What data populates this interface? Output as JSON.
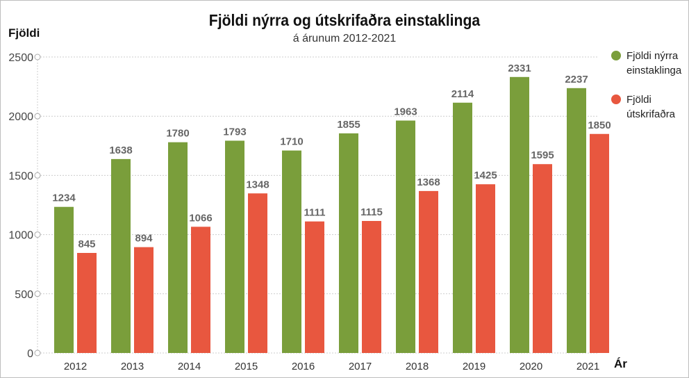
{
  "chart_data": {
    "type": "bar",
    "title": "Fjöldi nýrra og útskrifaðra einstaklinga",
    "subtitle": "á árunum 2012-2021",
    "ylabel": "Fjöldi",
    "xlabel": "Ár",
    "ylim": [
      0,
      2500
    ],
    "yticks": [
      0,
      500,
      1000,
      1500,
      2000,
      2500
    ],
    "grid": true,
    "legend_position": "right",
    "categories": [
      "2012",
      "2013",
      "2014",
      "2015",
      "2016",
      "2017",
      "2018",
      "2019",
      "2020",
      "2021"
    ],
    "series": [
      {
        "name": "Fjöldi nýrra einstaklinga",
        "color": "#7a9e3b",
        "values": [
          1234,
          1638,
          1780,
          1793,
          1710,
          1855,
          1963,
          2114,
          2331,
          2237
        ]
      },
      {
        "name": "Fjöldi útskrifaðra",
        "color": "#e8573f",
        "values": [
          845,
          894,
          1066,
          1348,
          1111,
          1115,
          1368,
          1425,
          1595,
          1850
        ]
      }
    ]
  }
}
